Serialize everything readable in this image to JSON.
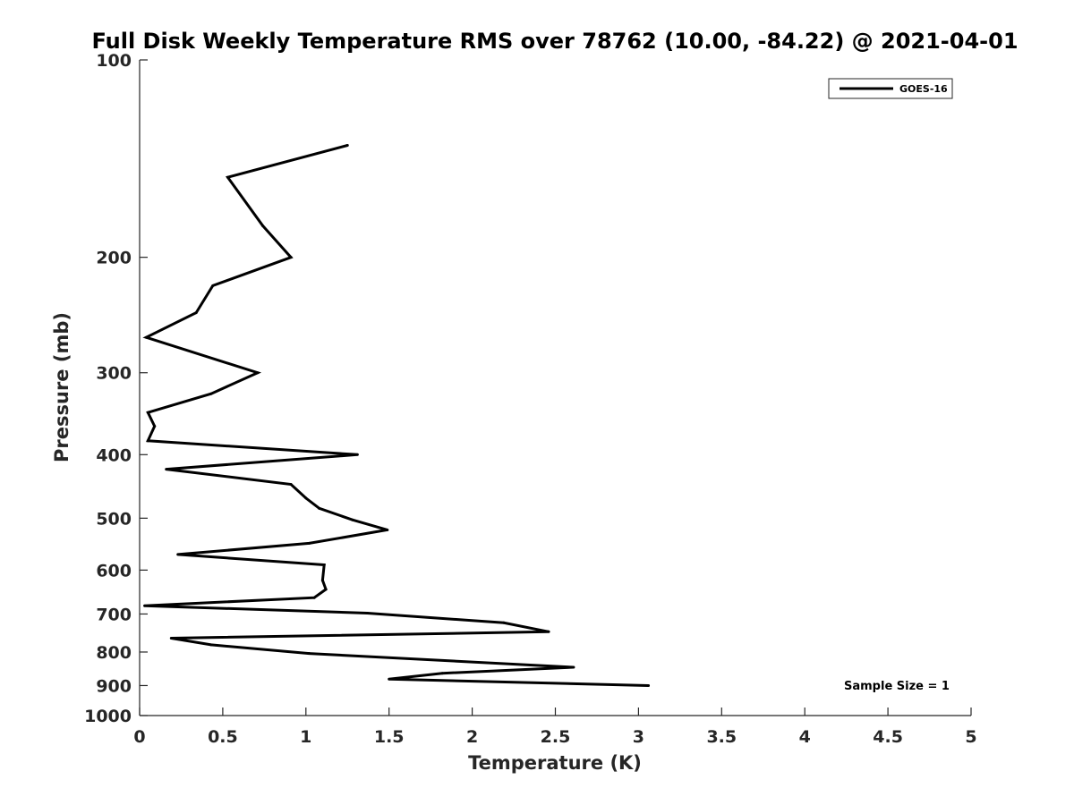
{
  "chart_data": {
    "type": "line",
    "title": "Full Disk Weekly Temperature RMS over 78762 (10.00, -84.22) @ 2021-04-01",
    "xlabel": "Temperature (K)",
    "ylabel": "Pressure (mb)",
    "xlim": [
      0,
      5
    ],
    "ylim": [
      100,
      1000
    ],
    "yscale": "log",
    "y_reversed": true,
    "grid": false,
    "legend_position": "top-right",
    "x_ticks": [
      0,
      0.5,
      1,
      1.5,
      2,
      2.5,
      3,
      3.5,
      4,
      4.5,
      5
    ],
    "x_tick_labels": [
      "0",
      "0.5",
      "1",
      "1.5",
      "2",
      "2.5",
      "3",
      "3.5",
      "4",
      "4.5",
      "5"
    ],
    "y_ticks": [
      100,
      200,
      300,
      400,
      500,
      600,
      700,
      800,
      900,
      1000
    ],
    "y_tick_labels": [
      "100",
      "200",
      "300",
      "400",
      "500",
      "600",
      "700",
      "800",
      "900",
      "1000"
    ],
    "series": [
      {
        "name": "GOES-16",
        "color": "#000000",
        "points": [
          {
            "x": 1.25,
            "y": 135
          },
          {
            "x": 0.53,
            "y": 151
          },
          {
            "x": 0.74,
            "y": 179
          },
          {
            "x": 0.91,
            "y": 200
          },
          {
            "x": 0.44,
            "y": 221
          },
          {
            "x": 0.34,
            "y": 243
          },
          {
            "x": 0.04,
            "y": 265
          },
          {
            "x": 0.71,
            "y": 300
          },
          {
            "x": 0.43,
            "y": 323
          },
          {
            "x": 0.05,
            "y": 345
          },
          {
            "x": 0.09,
            "y": 362
          },
          {
            "x": 0.05,
            "y": 381
          },
          {
            "x": 1.31,
            "y": 400
          },
          {
            "x": 0.16,
            "y": 421
          },
          {
            "x": 0.91,
            "y": 444
          },
          {
            "x": 1.0,
            "y": 466
          },
          {
            "x": 1.08,
            "y": 483
          },
          {
            "x": 1.28,
            "y": 503
          },
          {
            "x": 1.49,
            "y": 521
          },
          {
            "x": 1.02,
            "y": 546
          },
          {
            "x": 0.23,
            "y": 568
          },
          {
            "x": 1.11,
            "y": 589
          },
          {
            "x": 1.1,
            "y": 622
          },
          {
            "x": 1.12,
            "y": 642
          },
          {
            "x": 1.05,
            "y": 661
          },
          {
            "x": 0.03,
            "y": 680
          },
          {
            "x": 1.37,
            "y": 698
          },
          {
            "x": 2.19,
            "y": 722
          },
          {
            "x": 2.46,
            "y": 745
          },
          {
            "x": 0.19,
            "y": 762
          },
          {
            "x": 0.43,
            "y": 780
          },
          {
            "x": 1.02,
            "y": 804
          },
          {
            "x": 2.61,
            "y": 844
          },
          {
            "x": 1.82,
            "y": 862
          },
          {
            "x": 1.5,
            "y": 880
          },
          {
            "x": 3.06,
            "y": 900
          }
        ]
      }
    ],
    "legend": {
      "entries": [
        "GOES-16"
      ]
    },
    "annotation": "Sample Size = 1"
  }
}
